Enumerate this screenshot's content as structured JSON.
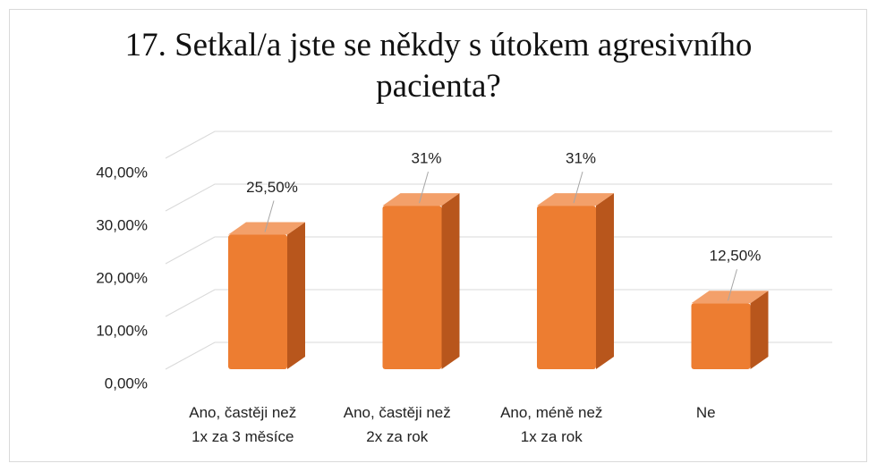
{
  "chart_data": {
    "type": "bar3d",
    "title": "17. Setkal/a jste se někdy s útokem agresivního pacienta?",
    "categories": [
      "Ano, častěji než 1x za 3 měsíce",
      "Ano, častěji než 2x za rok",
      "Ano, méně než 1x za rok",
      "Ne"
    ],
    "values": [
      25.5,
      31,
      31,
      12.5
    ],
    "value_labels": [
      "25,50%",
      "31%",
      "31%",
      "12,50%"
    ],
    "color": "#ed7d31",
    "ylim": [
      0,
      40
    ],
    "yticks": [
      {
        "value": 0,
        "label": "0,00%"
      },
      {
        "value": 10,
        "label": "10,00%"
      },
      {
        "value": 20,
        "label": "20,00%"
      },
      {
        "value": 30,
        "label": "30,00%"
      },
      {
        "value": 40,
        "label": "40,00%"
      }
    ],
    "grid": true
  }
}
